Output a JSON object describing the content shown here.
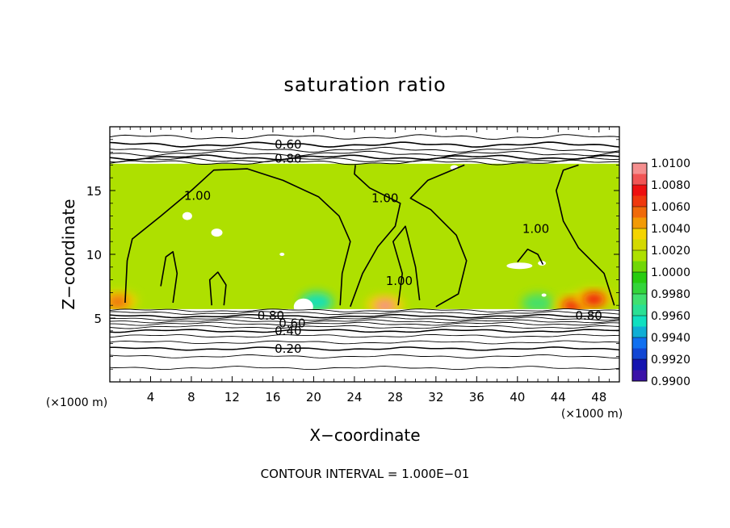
{
  "chart_data": {
    "type": "heatmap",
    "title": "saturation ratio",
    "xlabel": "X−coordinate",
    "ylabel": "Z−coordinate",
    "x_unit_label": "(×1000 m)",
    "y_unit_label": "(×1000 m)",
    "xlim": [
      0,
      50
    ],
    "ylim": [
      0,
      20
    ],
    "x_ticks": [
      4,
      8,
      12,
      16,
      20,
      24,
      28,
      32,
      36,
      40,
      44,
      48
    ],
    "y_ticks": [
      5,
      10,
      15
    ],
    "footer": "CONTOUR INTERVAL = 1.000E−01",
    "colorbar": {
      "levels": [
        "1.0100",
        "1.0080",
        "1.0060",
        "1.0040",
        "1.0020",
        "1.0000",
        "0.9980",
        "0.9960",
        "0.9940",
        "0.9920",
        "0.9900"
      ],
      "colors": [
        "#f58f8f",
        "#ee1010",
        "#f06a0a",
        "#f5d400",
        "#aee000",
        "#28cc10",
        "#40e070",
        "#10e0c0",
        "#1070f0",
        "#1414b0",
        "#6a10a0"
      ]
    },
    "field": {
      "colored_layer_z": [
        5.7,
        17.1
      ],
      "background_value": 1.0005,
      "high_spots": [
        {
          "x": 27.0,
          "z": 5.9,
          "value": 1.008
        },
        {
          "x": 45.5,
          "z": 5.9,
          "value": 1.007
        },
        {
          "x": 47.5,
          "z": 6.4,
          "value": 1.006
        },
        {
          "x": 0.8,
          "z": 6.2,
          "value": 1.005
        }
      ],
      "low_spots": [
        {
          "x": 20.3,
          "z": 6.0,
          "value": 0.994
        },
        {
          "x": 42.0,
          "z": 5.9,
          "value": 0.996
        }
      ]
    },
    "contour_labels": [
      {
        "text": "0.60",
        "x": 17.5,
        "z": 18.6
      },
      {
        "text": "0.80",
        "x": 17.5,
        "z": 17.5
      },
      {
        "text": "1.00",
        "x": 8.6,
        "z": 14.6
      },
      {
        "text": "1.00",
        "x": 27.0,
        "z": 14.4
      },
      {
        "text": "1.00",
        "x": 28.4,
        "z": 7.9
      },
      {
        "text": "1.00",
        "x": 41.8,
        "z": 12.0
      },
      {
        "text": "0.80",
        "x": 15.8,
        "z": 5.2
      },
      {
        "text": "0.60",
        "x": 17.9,
        "z": 4.6
      },
      {
        "text": "0.40",
        "x": 17.5,
        "z": 4.0
      },
      {
        "text": "0.20",
        "x": 17.5,
        "z": 2.6
      },
      {
        "text": "0.80",
        "x": 47.0,
        "z": 5.2
      }
    ]
  }
}
